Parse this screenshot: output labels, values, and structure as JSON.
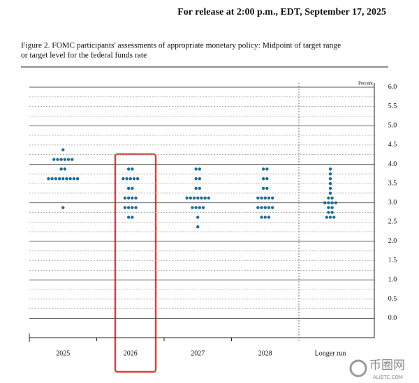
{
  "header": "For release at 2:00 p.m., EDT, September 17, 2025",
  "chart_data": {
    "type": "dot",
    "title": [
      "Figure 2. FOMC participants' assessments of appropriate monetary policy: Midpoint of target range",
      "or target level for the federal funds rate"
    ],
    "y_label": "Percent",
    "categories": [
      "2025",
      "2026",
      "2027",
      "2028",
      "Longer run"
    ],
    "color": "#1f6a96",
    "ylim": [
      -0.5,
      6
    ],
    "yticks": [
      {
        "value": 0,
        "label": "0.0"
      },
      {
        "value": 0.5,
        "label": "0.5"
      },
      {
        "value": 1,
        "label": "1.0"
      },
      {
        "value": 1.5,
        "label": "1.5"
      },
      {
        "value": 2,
        "label": "2.0"
      },
      {
        "value": 2.5,
        "label": "2.5"
      },
      {
        "value": 3,
        "label": "3.0"
      },
      {
        "value": 3.5,
        "label": "3.5"
      },
      {
        "value": 4,
        "label": "4.0"
      },
      {
        "value": 4.5,
        "label": "4.5"
      },
      {
        "value": 5,
        "label": "5.0"
      },
      {
        "value": 5.5,
        "label": "5.5"
      },
      {
        "value": 6,
        "label": "6.0"
      }
    ],
    "dots": [
      [
        {
          "value": 4.375,
          "count": 1
        },
        {
          "value": 4.125,
          "count": 6
        },
        {
          "value": 3.875,
          "count": 2
        },
        {
          "value": 3.625,
          "count": 9
        },
        {
          "value": 2.875,
          "count": 1
        }
      ],
      [
        {
          "value": 3.875,
          "count": 2
        },
        {
          "value": 3.625,
          "count": 5
        },
        {
          "value": 3.375,
          "count": 2
        },
        {
          "value": 3.125,
          "count": 4
        },
        {
          "value": 2.875,
          "count": 4
        },
        {
          "value": 2.625,
          "count": 2
        }
      ],
      [
        {
          "value": 3.875,
          "count": 2
        },
        {
          "value": 3.625,
          "count": 2
        },
        {
          "value": 3.375,
          "count": 2
        },
        {
          "value": 3.125,
          "count": 7
        },
        {
          "value": 2.875,
          "count": 4
        },
        {
          "value": 2.625,
          "count": 1
        },
        {
          "value": 2.375,
          "count": 1
        }
      ],
      [
        {
          "value": 3.875,
          "count": 2
        },
        {
          "value": 3.625,
          "count": 2
        },
        {
          "value": 3.375,
          "count": 2
        },
        {
          "value": 3.125,
          "count": 5
        },
        {
          "value": 2.875,
          "count": 5
        },
        {
          "value": 2.625,
          "count": 3
        }
      ],
      [
        {
          "value": 3.875,
          "count": 1
        },
        {
          "value": 3.75,
          "count": 1
        },
        {
          "value": 3.625,
          "count": 1
        },
        {
          "value": 3.5,
          "count": 1
        },
        {
          "value": 3.375,
          "count": 1
        },
        {
          "value": 3.25,
          "count": 1
        },
        {
          "value": 3.125,
          "count": 2
        },
        {
          "value": 3.0,
          "count": 4
        },
        {
          "value": 2.875,
          "count": 2
        },
        {
          "value": 2.75,
          "count": 2
        },
        {
          "value": 2.625,
          "count": 3
        }
      ]
    ]
  },
  "watermark": {
    "name": "币圈网",
    "url": "ALIBTC.COM"
  }
}
